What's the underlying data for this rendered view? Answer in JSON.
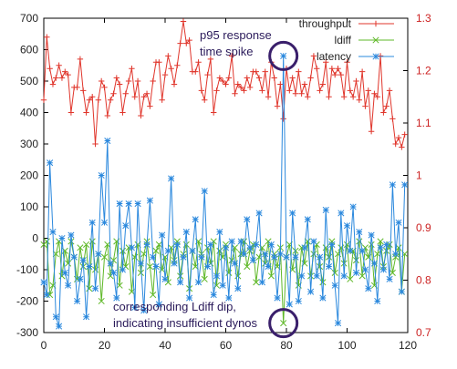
{
  "chart_data": {
    "type": "line",
    "x": [
      0,
      1,
      2,
      3,
      4,
      5,
      6,
      7,
      8,
      9,
      10,
      11,
      12,
      13,
      14,
      15,
      16,
      17,
      18,
      19,
      20,
      21,
      22,
      23,
      24,
      25,
      26,
      27,
      28,
      29,
      30,
      31,
      32,
      33,
      34,
      35,
      36,
      37,
      38,
      39,
      40,
      41,
      42,
      43,
      44,
      45,
      46,
      47,
      48,
      49,
      50,
      51,
      52,
      53,
      54,
      55,
      56,
      57,
      58,
      59,
      60,
      61,
      62,
      63,
      64,
      65,
      66,
      67,
      68,
      69,
      70,
      71,
      72,
      73,
      74,
      75,
      76,
      77,
      78,
      79,
      80,
      81,
      82,
      83,
      84,
      85,
      86,
      87,
      88,
      89,
      90,
      91,
      92,
      93,
      94,
      95,
      96,
      97,
      98,
      99,
      100,
      101,
      102,
      103,
      104,
      105,
      106,
      107,
      108,
      109,
      110,
      111,
      112,
      113,
      114,
      115,
      116,
      117,
      118,
      119
    ],
    "xlim": [
      0,
      120
    ],
    "x_ticks": [
      "0",
      "20",
      "40",
      "60",
      "80",
      "100",
      "120"
    ],
    "ylim_left": [
      -300,
      700
    ],
    "y_ticks_left": [
      "-300",
      "-200",
      "-100",
      "0",
      "100",
      "200",
      "300",
      "400",
      "500",
      "600",
      "700"
    ],
    "ylim_right": [
      0.7,
      1.3
    ],
    "y_ticks_right": [
      "0.7",
      "0.8",
      "0.9",
      "1",
      "1.1",
      "1.2",
      "1.3"
    ],
    "legend_placement": "top-right",
    "colors": {
      "throughput": "#e0352b",
      "ldiff": "#5fb828",
      "latency": "#2a88dd",
      "annotation_circle": "#3a1f6b",
      "right_axis": "#cc2222"
    },
    "series": [
      {
        "name": "throughput",
        "axis": "left",
        "marker": "plus",
        "values": [
          440,
          640,
          540,
          490,
          510,
          550,
          510,
          530,
          520,
          400,
          480,
          480,
          570,
          470,
          400,
          440,
          450,
          300,
          440,
          500,
          480,
          390,
          440,
          460,
          510,
          490,
          400,
          460,
          500,
          540,
          450,
          500,
          390,
          450,
          460,
          420,
          500,
          560,
          560,
          440,
          520,
          580,
          540,
          490,
          550,
          620,
          690,
          620,
          630,
          530,
          530,
          560,
          470,
          440,
          520,
          570,
          400,
          470,
          510,
          500,
          490,
          510,
          580,
          460,
          490,
          480,
          470,
          510,
          480,
          530,
          530,
          510,
          470,
          530,
          450,
          560,
          510,
          420,
          490,
          380,
          540,
          470,
          510,
          460,
          530,
          460,
          490,
          450,
          510,
          580,
          540,
          470,
          490,
          560,
          450,
          540,
          520,
          540,
          520,
          450,
          560,
          470,
          450,
          500,
          440,
          530,
          420,
          470,
          340,
          460,
          450,
          580,
          400,
          420,
          470,
          380,
          300,
          320,
          290,
          330
        ],
        "ylim_series": [
          -300,
          700
        ]
      },
      {
        "name": "ldiff",
        "axis": "left",
        "marker": "cross",
        "values": [
          -20,
          -10,
          -180,
          -150,
          -50,
          -10,
          -120,
          -40,
          -80,
          -10,
          -60,
          -130,
          -30,
          -90,
          -20,
          -160,
          -10,
          -100,
          -50,
          -200,
          -60,
          -20,
          -120,
          -70,
          -10,
          -150,
          -40,
          -90,
          -30,
          -170,
          -60,
          -20,
          -110,
          -50,
          -10,
          -90,
          -180,
          -40,
          -20,
          -100,
          -60,
          -140,
          -30,
          -70,
          -10,
          -120,
          -50,
          -20,
          -160,
          -40,
          -90,
          -10,
          -50,
          -130,
          -30,
          -80,
          -10,
          -150,
          -40,
          -60,
          -20,
          -110,
          -70,
          -30,
          -120,
          -50,
          -10,
          -90,
          -40,
          -20,
          -140,
          -60,
          -30,
          -80,
          -10,
          -120,
          -50,
          -90,
          -30,
          -270,
          -60,
          -20,
          -100,
          -40,
          -150,
          -30,
          -80,
          -10,
          -120,
          -50,
          -20,
          -90,
          -140,
          -30,
          -60,
          -10,
          -110,
          -50,
          -30,
          -80,
          -20,
          -130,
          -40,
          -70,
          -10,
          -120,
          -30,
          -60,
          -20,
          -150,
          -50,
          -10,
          -90,
          -40,
          -20,
          -110,
          -60,
          -30,
          -170,
          -50
        ]
      },
      {
        "name": "latency",
        "axis": "left",
        "marker": "star",
        "values": [
          -140,
          -180,
          240,
          20,
          -250,
          -280,
          0,
          -110,
          -150,
          10,
          -60,
          -200,
          -130,
          -70,
          -250,
          -90,
          50,
          -160,
          -50,
          200,
          50,
          310,
          -80,
          -110,
          -190,
          110,
          -100,
          40,
          110,
          -30,
          -220,
          110,
          -80,
          -230,
          -20,
          120,
          -60,
          -90,
          -210,
          10,
          -130,
          -40,
          190,
          -80,
          -20,
          -140,
          -60,
          20,
          -190,
          -40,
          60,
          -140,
          -60,
          150,
          -90,
          -20,
          -180,
          -120,
          20,
          -150,
          -30,
          -190,
          -10,
          -80,
          -160,
          -10,
          -50,
          60,
          -30,
          -70,
          -20,
          80,
          -140,
          -50,
          -90,
          -20,
          -60,
          -190,
          -50,
          580,
          -60,
          -210,
          80,
          -60,
          -200,
          -120,
          -30,
          60,
          -170,
          -10,
          -120,
          -60,
          -190,
          90,
          -90,
          -20,
          -150,
          -270,
          80,
          -120,
          40,
          -40,
          100,
          -110,
          20,
          -40,
          -100,
          -160,
          10,
          -80,
          -200,
          -30,
          -100,
          -20,
          -130,
          170,
          -50,
          50,
          -170,
          170
        ]
      }
    ],
    "annotations": [
      {
        "line1": "p95 response",
        "line2": "time spike",
        "at_x": 79,
        "at_y": 580
      },
      {
        "line1": "corresponding Ldiff dip,",
        "line2": "indicating insufficient dynos",
        "at_x": 79,
        "at_y": -270
      }
    ]
  }
}
